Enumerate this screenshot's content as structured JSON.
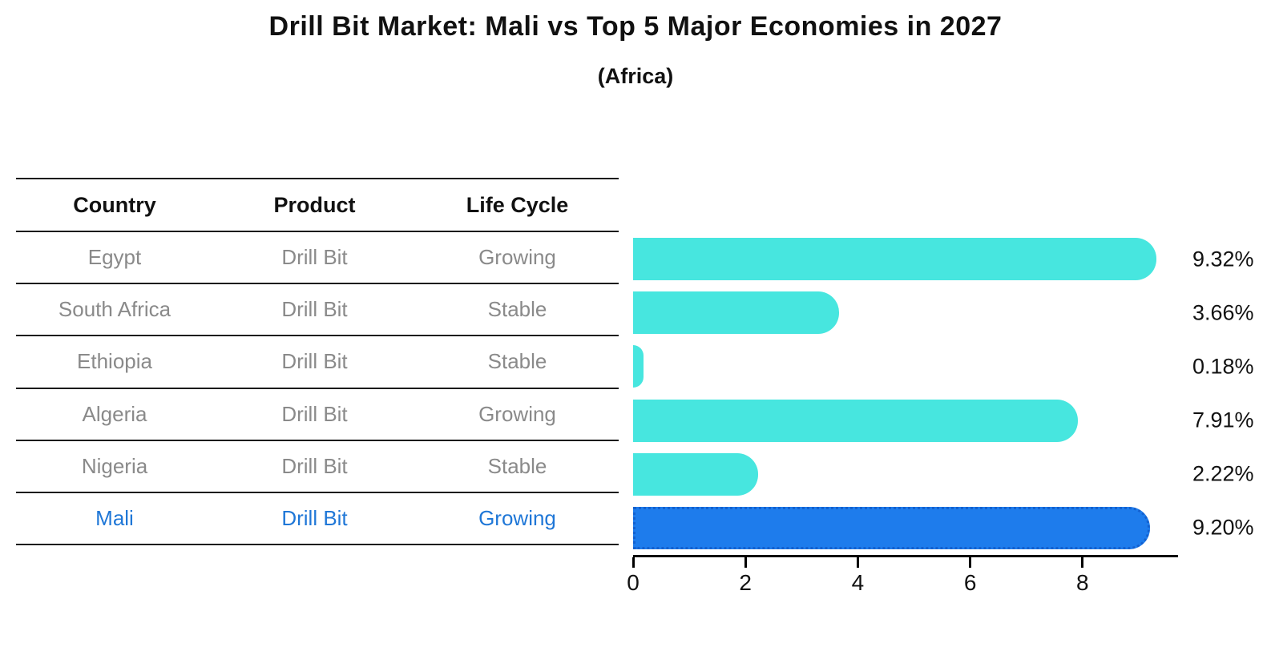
{
  "title": "Drill Bit Market: Mali vs Top 5 Major Economies in 2027",
  "subtitle": "(Africa)",
  "table": {
    "headers": {
      "country": "Country",
      "product": "Product",
      "life_cycle": "Life Cycle"
    },
    "rows": [
      {
        "country": "Egypt",
        "product": "Drill Bit",
        "life_cycle": "Growing",
        "highlight": false
      },
      {
        "country": "South Africa",
        "product": "Drill Bit",
        "life_cycle": "Stable",
        "highlight": false
      },
      {
        "country": "Ethiopia",
        "product": "Drill Bit",
        "life_cycle": "Stable",
        "highlight": false
      },
      {
        "country": "Algeria",
        "product": "Drill Bit",
        "life_cycle": "Growing",
        "highlight": false
      },
      {
        "country": "Nigeria",
        "product": "Drill Bit",
        "life_cycle": "Stable",
        "highlight": false
      },
      {
        "country": "Mali",
        "product": "Drill Bit",
        "life_cycle": "Growing",
        "highlight": true
      }
    ]
  },
  "chart_data": {
    "type": "bar",
    "orientation": "horizontal",
    "title": "Drill Bit Market: Mali vs Top 5 Major Economies in 2027 (Africa)",
    "categories": [
      "Egypt",
      "South Africa",
      "Ethiopia",
      "Algeria",
      "Nigeria",
      "Mali"
    ],
    "values": [
      9.32,
      3.66,
      0.18,
      7.91,
      2.22,
      9.2
    ],
    "value_labels": [
      "9.32%",
      "3.66%",
      "0.18%",
      "7.91%",
      "2.22%",
      "9.20%"
    ],
    "xticks": [
      0,
      2,
      4,
      6,
      8
    ],
    "xlim": [
      0,
      9.7
    ],
    "grid": false,
    "legend": false,
    "bar_color": "#47e6df",
    "highlight_index": 5,
    "highlight_color": "#1e7cec",
    "highlight_border_color": "#1461cf",
    "highlight_text_color": "#1f77d7"
  }
}
